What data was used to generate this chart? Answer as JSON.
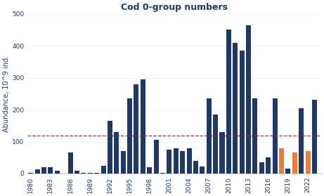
{
  "title": "Cod 0-group numbers",
  "ylabel": "Abundance, 10^9 ind.",
  "years": [
    1980,
    1981,
    1982,
    1983,
    1984,
    1985,
    1986,
    1987,
    1988,
    1989,
    1990,
    1991,
    1992,
    1993,
    1994,
    1995,
    1996,
    1997,
    1998,
    1999,
    2000,
    2001,
    2002,
    2003,
    2004,
    2005,
    2006,
    2007,
    2008,
    2009,
    2010,
    2011,
    2012,
    2013,
    2014,
    2015,
    2016,
    2017,
    2018,
    2019,
    2020,
    2021,
    2022,
    2023
  ],
  "values": [
    2,
    13,
    20,
    20,
    8,
    1,
    65,
    8,
    2,
    2,
    2,
    25,
    165,
    130,
    70,
    235,
    280,
    295,
    20,
    105,
    3,
    75,
    80,
    70,
    80,
    40,
    22,
    235,
    185,
    130,
    450,
    410,
    385,
    465,
    235,
    35,
    50,
    235,
    80,
    15,
    65,
    205,
    70,
    230
  ],
  "orange_years": [
    2018,
    2020,
    2022
  ],
  "bar_color": "#1F3864",
  "orange_color": "#ED7D31",
  "avg_line_value": 118,
  "avg_line_color": "#FF0000",
  "ylim": [
    0,
    500
  ],
  "yticks": [
    0,
    100,
    200,
    300,
    400,
    500
  ],
  "xtick_years": [
    1980,
    1983,
    1986,
    1989,
    1992,
    1995,
    1998,
    2001,
    2004,
    2007,
    2010,
    2013,
    2016,
    2019,
    2022
  ],
  "background_color": "#FFFFFF",
  "grid_color": "#DDEEFF",
  "title_color": "#1F3864",
  "axis_label_color": "#1F3864",
  "tick_color": "#1F3864",
  "title_fontsize": 9,
  "tick_fontsize": 6.5,
  "ylabel_fontsize": 7
}
